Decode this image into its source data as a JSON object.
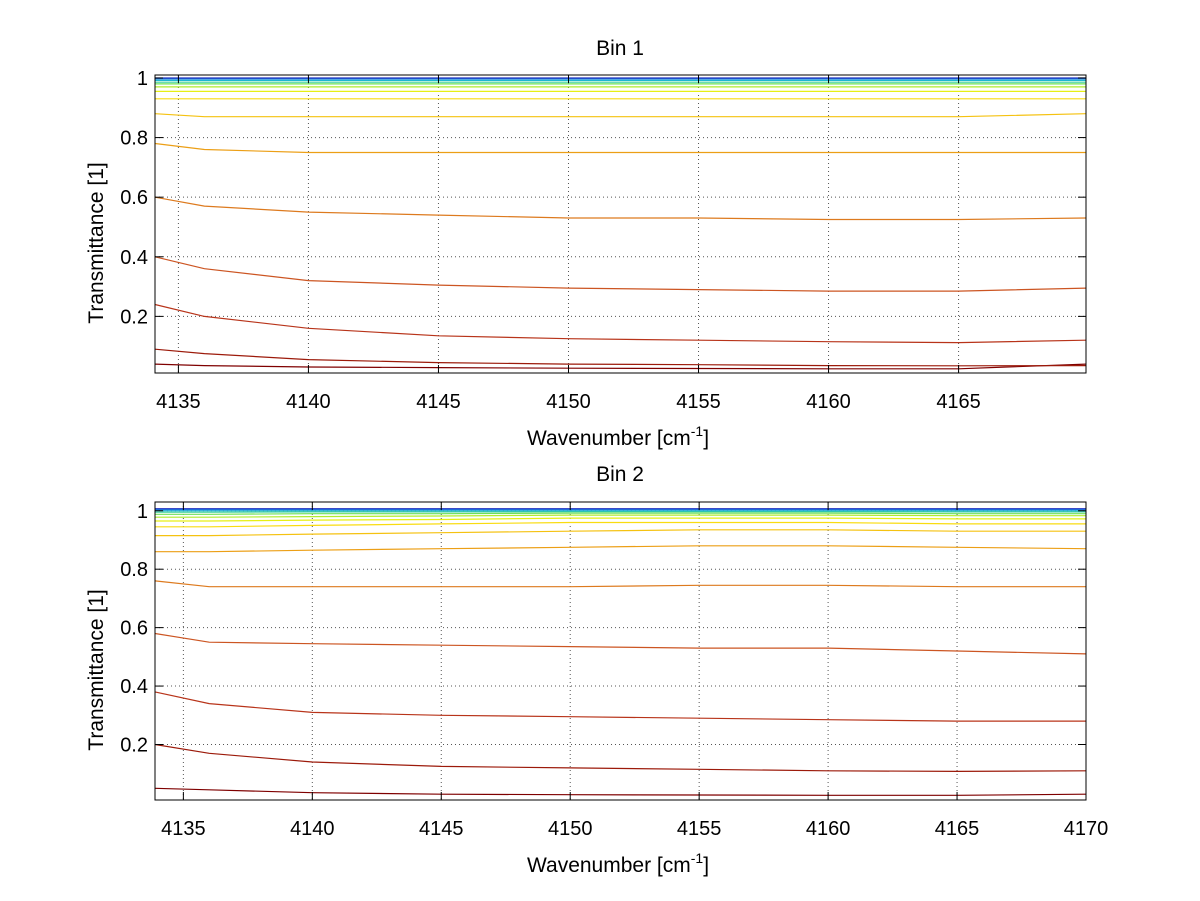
{
  "figure": {
    "background": "#ffffff"
  },
  "chart_data": [
    {
      "type": "line",
      "title": "Bin 1",
      "xlabel": "Wavenumber [cm",
      "xlabel_sup": "-1",
      "xlabel_close": "]",
      "ylabel": "Transmittance [1]",
      "xlim": [
        4134.1,
        4169.9
      ],
      "ylim": [
        0.01,
        1.01
      ],
      "xticks": [
        4135,
        4140,
        4145,
        4150,
        4155,
        4160,
        4165
      ],
      "xtick_labels": [
        "4135",
        "4140",
        "4145",
        "4150",
        "4155",
        "4160",
        "4165"
      ],
      "yticks": [
        0.2,
        0.4,
        0.6,
        0.8,
        1
      ],
      "ytick_labels": [
        "0.2",
        "0.4",
        "0.6",
        "0.8",
        "1"
      ],
      "grid": true,
      "grid_style": "dotted",
      "line_color_map": [
        "#7f0000",
        "#9c1a0a",
        "#b8341a",
        "#cc5522",
        "#dd7a1e",
        "#ec9f16",
        "#f5c211",
        "#f9dc10",
        "#e6ef14",
        "#b0ec2a",
        "#6ee05a",
        "#38cf9a",
        "#1eb6d4",
        "#1a7fe0",
        "#2030c0"
      ],
      "series": [
        {
          "x": [
            4134.1,
            4136,
            4140,
            4145,
            4150,
            4155,
            4160,
            4165,
            4169.9
          ],
          "values": [
            0.04,
            0.035,
            0.03,
            0.028,
            0.026,
            0.025,
            0.024,
            0.024,
            0.04
          ]
        },
        {
          "x": [
            4134.1,
            4136,
            4140,
            4145,
            4150,
            4155,
            4160,
            4165,
            4169.9
          ],
          "values": [
            0.09,
            0.075,
            0.055,
            0.045,
            0.04,
            0.038,
            0.035,
            0.034,
            0.035
          ]
        },
        {
          "x": [
            4134.1,
            4136,
            4140,
            4145,
            4150,
            4155,
            4160,
            4165,
            4169.9
          ],
          "values": [
            0.24,
            0.2,
            0.16,
            0.135,
            0.125,
            0.12,
            0.115,
            0.112,
            0.12
          ]
        },
        {
          "x": [
            4134.1,
            4136,
            4140,
            4145,
            4150,
            4155,
            4160,
            4165,
            4169.9
          ],
          "values": [
            0.4,
            0.36,
            0.32,
            0.305,
            0.295,
            0.29,
            0.285,
            0.285,
            0.295
          ]
        },
        {
          "x": [
            4134.1,
            4136,
            4140,
            4145,
            4150,
            4155,
            4160,
            4165,
            4169.9
          ],
          "values": [
            0.6,
            0.57,
            0.55,
            0.54,
            0.53,
            0.53,
            0.525,
            0.525,
            0.53
          ]
        },
        {
          "x": [
            4134.1,
            4136,
            4140,
            4145,
            4150,
            4155,
            4160,
            4165,
            4169.9
          ],
          "values": [
            0.78,
            0.76,
            0.75,
            0.75,
            0.75,
            0.75,
            0.75,
            0.75,
            0.75
          ]
        },
        {
          "x": [
            4134.1,
            4136,
            4140,
            4145,
            4150,
            4155,
            4160,
            4165,
            4169.9
          ],
          "values": [
            0.88,
            0.87,
            0.87,
            0.87,
            0.87,
            0.87,
            0.87,
            0.87,
            0.88
          ]
        },
        {
          "x": [
            4134.1,
            4136,
            4140,
            4145,
            4150,
            4155,
            4160,
            4165,
            4169.9
          ],
          "values": [
            0.93,
            0.93,
            0.93,
            0.93,
            0.93,
            0.93,
            0.93,
            0.93,
            0.93
          ]
        },
        {
          "x": [
            4134.1,
            4136,
            4140,
            4145,
            4150,
            4155,
            4160,
            4165,
            4169.9
          ],
          "values": [
            0.955,
            0.955,
            0.955,
            0.955,
            0.955,
            0.955,
            0.955,
            0.955,
            0.955
          ]
        },
        {
          "x": [
            4134.1,
            4136,
            4140,
            4145,
            4150,
            4155,
            4160,
            4165,
            4169.9
          ],
          "values": [
            0.97,
            0.97,
            0.97,
            0.97,
            0.97,
            0.97,
            0.97,
            0.97,
            0.97
          ]
        },
        {
          "x": [
            4134.1,
            4136,
            4140,
            4145,
            4150,
            4155,
            4160,
            4165,
            4169.9
          ],
          "values": [
            0.98,
            0.98,
            0.98,
            0.98,
            0.98,
            0.98,
            0.98,
            0.98,
            0.98
          ]
        },
        {
          "x": [
            4134.1,
            4136,
            4140,
            4145,
            4150,
            4155,
            4160,
            4165,
            4169.9
          ],
          "values": [
            0.986,
            0.986,
            0.986,
            0.986,
            0.986,
            0.986,
            0.986,
            0.986,
            0.986
          ]
        },
        {
          "x": [
            4134.1,
            4136,
            4140,
            4145,
            4150,
            4155,
            4160,
            4165,
            4169.9
          ],
          "values": [
            0.992,
            0.992,
            0.992,
            0.992,
            0.992,
            0.992,
            0.992,
            0.992,
            0.992
          ]
        },
        {
          "x": [
            4134.1,
            4136,
            4140,
            4145,
            4150,
            4155,
            4160,
            4165,
            4169.9
          ],
          "values": [
            0.997,
            0.997,
            0.997,
            0.997,
            0.997,
            0.997,
            0.997,
            0.997,
            0.997
          ]
        },
        {
          "x": [
            4134.1,
            4136,
            4140,
            4145,
            4150,
            4155,
            4160,
            4165,
            4169.9
          ],
          "values": [
            1.0,
            1.0,
            1.0,
            1.0,
            1.0,
            1.0,
            1.0,
            1.0,
            1.0
          ]
        }
      ]
    },
    {
      "type": "line",
      "title": "Bin 2",
      "xlabel": "Wavenumber [cm",
      "xlabel_sup": "-1",
      "xlabel_close": "]",
      "ylabel": "Transmittance [1]",
      "xlim": [
        4133.9,
        4170
      ],
      "ylim": [
        0.01,
        1.03
      ],
      "xticks": [
        4135,
        4140,
        4145,
        4150,
        4155,
        4160,
        4165,
        4170
      ],
      "xtick_labels": [
        "4135",
        "4140",
        "4145",
        "4150",
        "4155",
        "4160",
        "4165",
        "4170"
      ],
      "yticks": [
        0.2,
        0.4,
        0.6,
        0.8,
        1
      ],
      "ytick_labels": [
        "0.2",
        "0.4",
        "0.6",
        "0.8",
        "1"
      ],
      "grid": true,
      "grid_style": "dotted",
      "line_color_map": [
        "#7f0000",
        "#9c1a0a",
        "#b8341a",
        "#cc5522",
        "#dd7a1e",
        "#ec9f16",
        "#f5c211",
        "#f9dc10",
        "#e6ef14",
        "#b0ec2a",
        "#6ee05a",
        "#38cf9a",
        "#1eb6d4",
        "#1a7fe0",
        "#2030c0"
      ],
      "series": [
        {
          "x": [
            4133.9,
            4136,
            4140,
            4145,
            4150,
            4155,
            4160,
            4165,
            4170
          ],
          "values": [
            0.05,
            0.045,
            0.035,
            0.03,
            0.028,
            0.027,
            0.026,
            0.026,
            0.03
          ]
        },
        {
          "x": [
            4133.9,
            4136,
            4140,
            4145,
            4150,
            4155,
            4160,
            4165,
            4170
          ],
          "values": [
            0.2,
            0.17,
            0.14,
            0.125,
            0.12,
            0.115,
            0.11,
            0.108,
            0.11
          ]
        },
        {
          "x": [
            4133.9,
            4136,
            4140,
            4145,
            4150,
            4155,
            4160,
            4165,
            4170
          ],
          "values": [
            0.38,
            0.34,
            0.31,
            0.3,
            0.295,
            0.29,
            0.285,
            0.28,
            0.28
          ]
        },
        {
          "x": [
            4133.9,
            4136,
            4140,
            4145,
            4150,
            4155,
            4160,
            4165,
            4170
          ],
          "values": [
            0.58,
            0.55,
            0.545,
            0.54,
            0.535,
            0.53,
            0.53,
            0.52,
            0.51
          ]
        },
        {
          "x": [
            4133.9,
            4136,
            4140,
            4145,
            4150,
            4155,
            4160,
            4165,
            4170
          ],
          "values": [
            0.76,
            0.74,
            0.74,
            0.74,
            0.74,
            0.745,
            0.745,
            0.74,
            0.74
          ]
        },
        {
          "x": [
            4133.9,
            4136,
            4140,
            4145,
            4150,
            4155,
            4160,
            4165,
            4170
          ],
          "values": [
            0.86,
            0.86,
            0.865,
            0.87,
            0.875,
            0.88,
            0.88,
            0.875,
            0.87
          ]
        },
        {
          "x": [
            4133.9,
            4136,
            4140,
            4145,
            4150,
            4155,
            4160,
            4165,
            4170
          ],
          "values": [
            0.915,
            0.915,
            0.92,
            0.925,
            0.93,
            0.935,
            0.935,
            0.93,
            0.93
          ]
        },
        {
          "x": [
            4133.9,
            4136,
            4140,
            4145,
            4150,
            4155,
            4160,
            4165,
            4170
          ],
          "values": [
            0.945,
            0.945,
            0.95,
            0.955,
            0.96,
            0.96,
            0.96,
            0.955,
            0.955
          ]
        },
        {
          "x": [
            4133.9,
            4136,
            4140,
            4145,
            4150,
            4155,
            4160,
            4165,
            4170
          ],
          "values": [
            0.965,
            0.965,
            0.968,
            0.97,
            0.975,
            0.975,
            0.975,
            0.972,
            0.972
          ]
        },
        {
          "x": [
            4133.9,
            4136,
            4140,
            4145,
            4150,
            4155,
            4160,
            4165,
            4170
          ],
          "values": [
            0.978,
            0.978,
            0.98,
            0.982,
            0.985,
            0.985,
            0.985,
            0.983,
            0.983
          ]
        },
        {
          "x": [
            4133.9,
            4136,
            4140,
            4145,
            4150,
            4155,
            4160,
            4165,
            4170
          ],
          "values": [
            0.988,
            0.988,
            0.99,
            0.99,
            0.992,
            0.992,
            0.992,
            0.99,
            0.99
          ]
        },
        {
          "x": [
            4133.9,
            4136,
            4140,
            4145,
            4150,
            4155,
            4160,
            4165,
            4170
          ],
          "values": [
            0.995,
            0.995,
            0.996,
            0.996,
            0.997,
            0.997,
            0.997,
            0.996,
            0.996
          ]
        },
        {
          "x": [
            4133.9,
            4136,
            4140,
            4145,
            4150,
            4155,
            4160,
            4165,
            4170
          ],
          "values": [
            1.0,
            1.0,
            1.0,
            1.0,
            1.0,
            1.0,
            1.0,
            1.0,
            1.0
          ]
        },
        {
          "x": [
            4133.9,
            4136,
            4140,
            4145,
            4150,
            4155,
            4160,
            4165,
            4170
          ],
          "values": [
            1.004,
            1.004,
            1.004,
            1.004,
            1.004,
            1.004,
            1.004,
            1.004,
            1.004
          ]
        },
        {
          "x": [
            4133.9,
            4136,
            4140,
            4145,
            4150,
            4155,
            4160,
            4165,
            4170
          ],
          "values": [
            1.007,
            1.007,
            1.007,
            1.007,
            1.007,
            1.007,
            1.007,
            1.007,
            1.007
          ]
        }
      ]
    }
  ]
}
